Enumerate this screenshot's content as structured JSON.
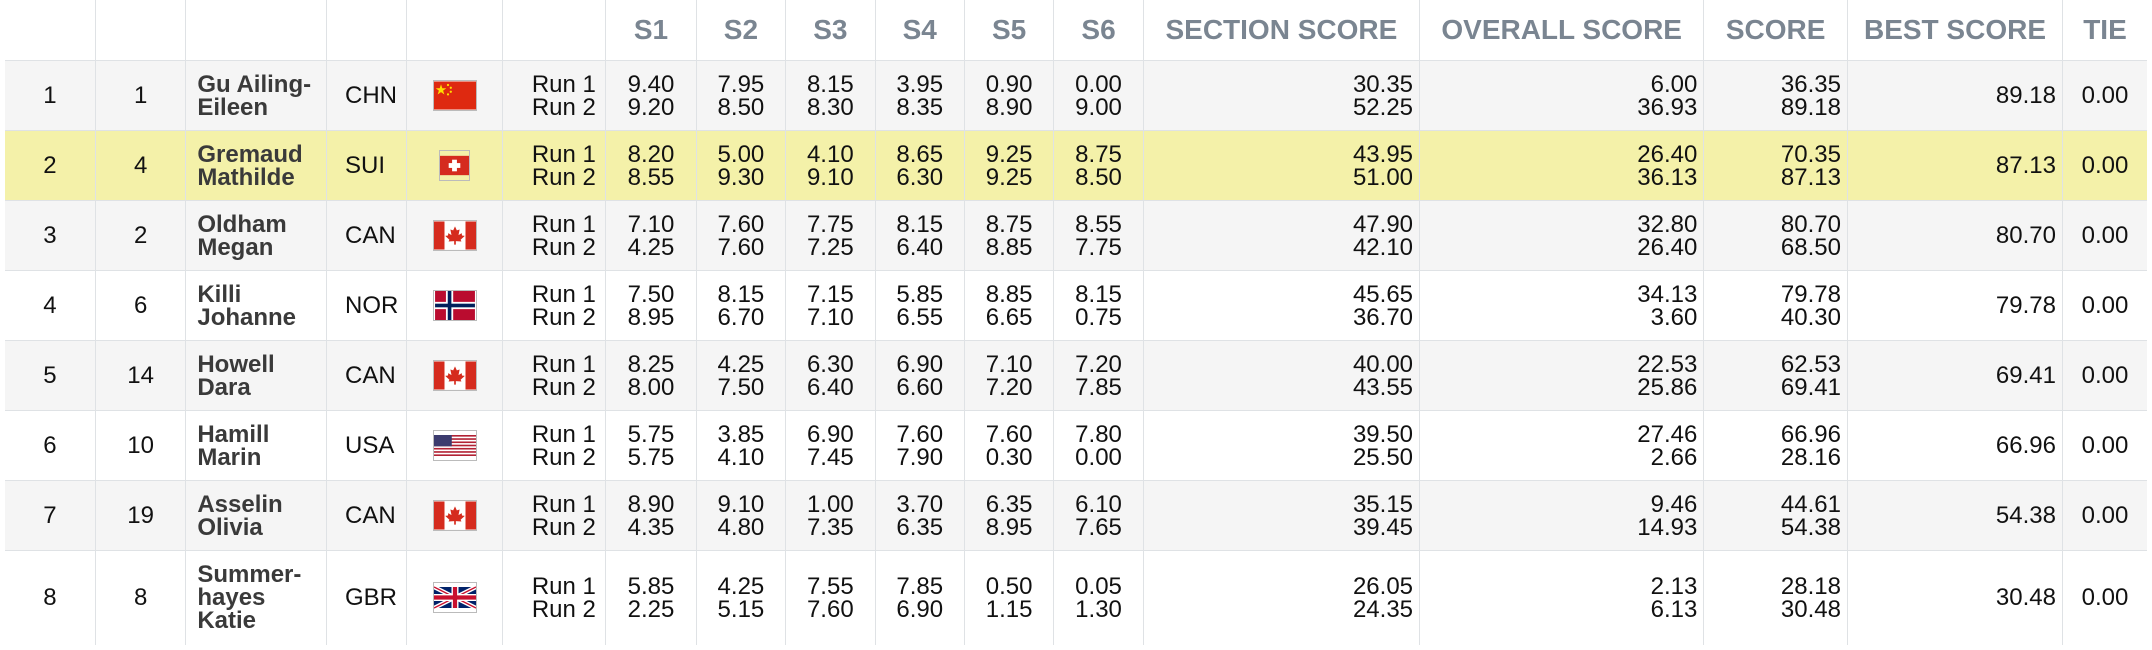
{
  "headers": {
    "rank": "",
    "bib": "",
    "name": "",
    "nat": "",
    "flag": "",
    "run": "",
    "s1": "S1",
    "s2": "S2",
    "s3": "S3",
    "s4": "S4",
    "s5": "S5",
    "s6": "S6",
    "section": "SECTION SCORE",
    "overall": "OVERALL SCORE",
    "score": "SCORE",
    "best": "BEST SCORE",
    "tie": "TIE"
  },
  "rows": [
    {
      "rank": "1",
      "bib": "1",
      "name": [
        "Gu Ailing-",
        "Eileen"
      ],
      "nat": "CHN",
      "flag": "china-flag-icon",
      "runs": [
        {
          "label": "Run 1",
          "s": [
            "9.40",
            "7.95",
            "8.15",
            "3.95",
            "0.90",
            "0.00"
          ],
          "section": "30.35",
          "overall": "6.00",
          "score": "36.35"
        },
        {
          "label": "Run 2",
          "s": [
            "9.20",
            "8.50",
            "8.30",
            "8.35",
            "8.90",
            "9.00"
          ],
          "section": "52.25",
          "overall": "36.93",
          "score": "89.18"
        }
      ],
      "best": "89.18",
      "tie": "0.00"
    },
    {
      "rank": "2",
      "bib": "4",
      "name": [
        "Gremaud",
        "Mathilde"
      ],
      "nat": "SUI",
      "flag": "switzerland-flag-icon",
      "runs": [
        {
          "label": "Run 1",
          "s": [
            "8.20",
            "5.00",
            "4.10",
            "8.65",
            "9.25",
            "8.75"
          ],
          "section": "43.95",
          "overall": "26.40",
          "score": "70.35"
        },
        {
          "label": "Run 2",
          "s": [
            "8.55",
            "9.30",
            "9.10",
            "6.30",
            "9.25",
            "8.50"
          ],
          "section": "51.00",
          "overall": "36.13",
          "score": "87.13"
        }
      ],
      "best": "87.13",
      "tie": "0.00"
    },
    {
      "rank": "3",
      "bib": "2",
      "name": [
        "Oldham",
        "Megan"
      ],
      "nat": "CAN",
      "flag": "canada-flag-icon",
      "runs": [
        {
          "label": "Run 1",
          "s": [
            "7.10",
            "7.60",
            "7.75",
            "8.15",
            "8.75",
            "8.55"
          ],
          "section": "47.90",
          "overall": "32.80",
          "score": "80.70"
        },
        {
          "label": "Run 2",
          "s": [
            "4.25",
            "7.60",
            "7.25",
            "6.40",
            "8.85",
            "7.75"
          ],
          "section": "42.10",
          "overall": "26.40",
          "score": "68.50"
        }
      ],
      "best": "80.70",
      "tie": "0.00"
    },
    {
      "rank": "4",
      "bib": "6",
      "name": [
        "Killi",
        "Johanne"
      ],
      "nat": "NOR",
      "flag": "norway-flag-icon",
      "runs": [
        {
          "label": "Run 1",
          "s": [
            "7.50",
            "8.15",
            "7.15",
            "5.85",
            "8.85",
            "8.15"
          ],
          "section": "45.65",
          "overall": "34.13",
          "score": "79.78"
        },
        {
          "label": "Run 2",
          "s": [
            "8.95",
            "6.70",
            "7.10",
            "6.55",
            "6.65",
            "0.75"
          ],
          "section": "36.70",
          "overall": "3.60",
          "score": "40.30"
        }
      ],
      "best": "79.78",
      "tie": "0.00"
    },
    {
      "rank": "5",
      "bib": "14",
      "name": [
        "Howell",
        "Dara"
      ],
      "nat": "CAN",
      "flag": "canada-flag-icon",
      "runs": [
        {
          "label": "Run 1",
          "s": [
            "8.25",
            "4.25",
            "6.30",
            "6.90",
            "7.10",
            "7.20"
          ],
          "section": "40.00",
          "overall": "22.53",
          "score": "62.53"
        },
        {
          "label": "Run 2",
          "s": [
            "8.00",
            "7.50",
            "6.40",
            "6.60",
            "7.20",
            "7.85"
          ],
          "section": "43.55",
          "overall": "25.86",
          "score": "69.41"
        }
      ],
      "best": "69.41",
      "tie": "0.00"
    },
    {
      "rank": "6",
      "bib": "10",
      "name": [
        "Hamill",
        "Marin"
      ],
      "nat": "USA",
      "flag": "usa-flag-icon",
      "runs": [
        {
          "label": "Run 1",
          "s": [
            "5.75",
            "3.85",
            "6.90",
            "7.60",
            "7.60",
            "7.80"
          ],
          "section": "39.50",
          "overall": "27.46",
          "score": "66.96"
        },
        {
          "label": "Run 2",
          "s": [
            "5.75",
            "4.10",
            "7.45",
            "7.90",
            "0.30",
            "0.00"
          ],
          "section": "25.50",
          "overall": "2.66",
          "score": "28.16"
        }
      ],
      "best": "66.96",
      "tie": "0.00"
    },
    {
      "rank": "7",
      "bib": "19",
      "name": [
        "Asselin",
        "Olivia"
      ],
      "nat": "CAN",
      "flag": "canada-flag-icon",
      "runs": [
        {
          "label": "Run 1",
          "s": [
            "8.90",
            "9.10",
            "1.00",
            "3.70",
            "6.35",
            "6.10"
          ],
          "section": "35.15",
          "overall": "9.46",
          "score": "44.61"
        },
        {
          "label": "Run 2",
          "s": [
            "4.35",
            "4.80",
            "7.35",
            "6.35",
            "8.95",
            "7.65"
          ],
          "section": "39.45",
          "overall": "14.93",
          "score": "54.38"
        }
      ],
      "best": "54.38",
      "tie": "0.00"
    },
    {
      "rank": "8",
      "bib": "8",
      "name": [
        "Summer-",
        "hayes",
        "Katie"
      ],
      "nat": "GBR",
      "flag": "uk-flag-icon",
      "runs": [
        {
          "label": "Run 1",
          "s": [
            "5.85",
            "4.25",
            "7.55",
            "7.85",
            "0.50",
            "0.05"
          ],
          "section": "26.05",
          "overall": "2.13",
          "score": "28.18"
        },
        {
          "label": "Run 2",
          "s": [
            "2.25",
            "5.15",
            "7.60",
            "6.90",
            "1.15",
            "1.30"
          ],
          "section": "24.35",
          "overall": "6.13",
          "score": "30.48"
        }
      ],
      "best": "30.48",
      "tie": "0.00"
    }
  ],
  "highlight_color": "#f4f1a9",
  "header_color": "#7a8591"
}
